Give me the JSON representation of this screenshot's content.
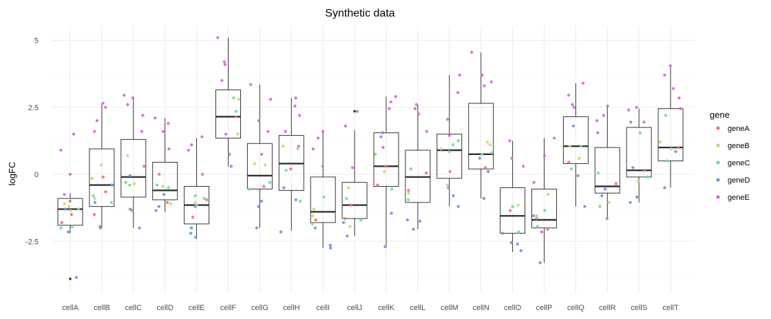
{
  "chart_data": {
    "type": "boxplot",
    "title": "Synthetic data",
    "xlabel": "",
    "ylabel": "logFC",
    "ylim": [
      -4.3,
      5.4
    ],
    "yticks": [
      5,
      2.5,
      0,
      -2.5
    ],
    "ytick_labels": [
      "5",
      "2.5",
      "0",
      "-2.5"
    ],
    "grid": true,
    "legend": {
      "title": "gene",
      "placement": "right",
      "entries": [
        "geneA",
        "geneB",
        "geneC",
        "geneD",
        "geneE"
      ]
    },
    "colors": {
      "geneA": "#f0736a",
      "geneB": "#c8d96b",
      "geneC": "#6edb9a",
      "geneD": "#6b97dd",
      "geneE": "#d569dc",
      "box": "#333333",
      "grid": "#ebebeb"
    },
    "categories": [
      "cellA",
      "cellB",
      "cellC",
      "cellD",
      "cellE",
      "cellF",
      "cellG",
      "cellH",
      "cellI",
      "cellJ",
      "cellK",
      "cellL",
      "cellM",
      "cellN",
      "cellO",
      "cellP",
      "cellQ",
      "cellR",
      "cellS",
      "cellT"
    ],
    "boxes": [
      {
        "whisker_low": -2.2,
        "q1": -1.9,
        "median": -1.3,
        "q3": -0.9,
        "whisker_high": -0.7,
        "outliers": [
          -3.9
        ]
      },
      {
        "whisker_low": -2.0,
        "q1": -1.2,
        "median": -0.4,
        "q3": 0.95,
        "whisker_high": 2.6,
        "outliers": []
      },
      {
        "whisker_low": -2.0,
        "q1": -0.85,
        "median": -0.1,
        "q3": 1.3,
        "whisker_high": 2.9,
        "outliers": []
      },
      {
        "whisker_low": -1.4,
        "q1": -0.95,
        "median": -0.6,
        "q3": 0.45,
        "whisker_high": 2.1,
        "outliers": []
      },
      {
        "whisker_low": -2.4,
        "q1": -1.85,
        "median": -1.15,
        "q3": -0.45,
        "whisker_high": 1.35,
        "outliers": []
      },
      {
        "whisker_low": 0.3,
        "q1": 1.35,
        "median": 2.15,
        "q3": 3.15,
        "whisker_high": 5.1,
        "outliers": []
      },
      {
        "whisker_low": -2.0,
        "q1": -0.55,
        "median": -0.05,
        "q3": 1.15,
        "whisker_high": 3.35,
        "outliers": []
      },
      {
        "whisker_low": -2.1,
        "q1": -0.6,
        "median": 0.4,
        "q3": 1.45,
        "whisker_high": 2.85,
        "outliers": []
      },
      {
        "whisker_low": -2.75,
        "q1": -1.8,
        "median": -1.4,
        "q3": -0.1,
        "whisker_high": 1.6,
        "outliers": []
      },
      {
        "whisker_low": -2.3,
        "q1": -1.65,
        "median": -1.15,
        "q3": -0.3,
        "whisker_high": 1.65,
        "outliers": [
          2.35
        ]
      },
      {
        "whisker_low": -2.7,
        "q1": -0.45,
        "median": 0.3,
        "q3": 1.55,
        "whisker_high": 2.9,
        "outliers": []
      },
      {
        "whisker_low": -2.05,
        "q1": -1.05,
        "median": -0.1,
        "q3": 0.9,
        "whisker_high": 2.6,
        "outliers": []
      },
      {
        "whisker_low": -1.2,
        "q1": -0.15,
        "median": 0.9,
        "q3": 1.5,
        "whisker_high": 3.7,
        "outliers": []
      },
      {
        "whisker_low": -0.9,
        "q1": 0.2,
        "median": 0.75,
        "q3": 2.65,
        "whisker_high": 4.55,
        "outliers": []
      },
      {
        "whisker_low": -2.9,
        "q1": -2.2,
        "median": -1.55,
        "q3": -0.5,
        "whisker_high": 1.25,
        "outliers": []
      },
      {
        "whisker_low": -3.3,
        "q1": -2.0,
        "median": -1.7,
        "q3": -0.55,
        "whisker_high": 1.35,
        "outliers": []
      },
      {
        "whisker_low": -1.2,
        "q1": 0.4,
        "median": 1.05,
        "q3": 2.15,
        "whisker_high": 3.4,
        "outliers": []
      },
      {
        "whisker_low": -1.65,
        "q1": -0.7,
        "median": -0.45,
        "q3": 1.0,
        "whisker_high": 2.55,
        "outliers": []
      },
      {
        "whisker_low": -1.05,
        "q1": -0.1,
        "median": 0.15,
        "q3": 1.75,
        "whisker_high": 2.45,
        "outliers": []
      },
      {
        "whisker_low": -0.5,
        "q1": 0.5,
        "median": 1.0,
        "q3": 2.45,
        "whisker_high": 4.0,
        "outliers": []
      }
    ],
    "points": [
      {
        "cat": 0,
        "gene": "geneA",
        "values": [
          -1.0,
          -1.5,
          -1.8
        ]
      },
      {
        "cat": 0,
        "gene": "geneB",
        "values": [
          -1.1,
          -1.2,
          -1.35
        ]
      },
      {
        "cat": 0,
        "gene": "geneC",
        "values": [
          -2.0,
          -1.3,
          -1.95
        ]
      },
      {
        "cat": 0,
        "gene": "geneD",
        "values": [
          -2.15,
          -1.3,
          -3.85
        ]
      },
      {
        "cat": 0,
        "gene": "geneE",
        "values": [
          1.5,
          0.9,
          0.0,
          -0.75
        ]
      },
      {
        "cat": 1,
        "gene": "geneA",
        "values": [
          -0.65,
          -1.5,
          -0.1
        ]
      },
      {
        "cat": 1,
        "gene": "geneB",
        "values": [
          0.35,
          -0.9,
          -0.15
        ]
      },
      {
        "cat": 1,
        "gene": "geneC",
        "values": [
          -1.05,
          -0.4,
          -0.8
        ]
      },
      {
        "cat": 1,
        "gene": "geneD",
        "values": [
          -2.0,
          -0.4,
          -1.05,
          -1.95
        ]
      },
      {
        "cat": 1,
        "gene": "geneE",
        "values": [
          2.65,
          2.5,
          2.0,
          1.6
        ]
      },
      {
        "cat": 2,
        "gene": "geneA",
        "values": [
          0.3,
          -1.35
        ]
      },
      {
        "cat": 2,
        "gene": "geneB",
        "values": [
          0.7,
          -0.35
        ]
      },
      {
        "cat": 2,
        "gene": "geneC",
        "values": [
          -0.4,
          -0.3
        ]
      },
      {
        "cat": 2,
        "gene": "geneD",
        "values": [
          -2.0,
          -1.3,
          -0.05
        ]
      },
      {
        "cat": 2,
        "gene": "geneE",
        "values": [
          2.95,
          2.2,
          2.6,
          1.6,
          2.85
        ]
      },
      {
        "cat": 3,
        "gene": "geneA",
        "values": [
          0.0,
          -1.05
        ]
      },
      {
        "cat": 3,
        "gene": "geneB",
        "values": [
          -0.45,
          -1.1
        ]
      },
      {
        "cat": 3,
        "gene": "geneC",
        "values": [
          -0.5,
          -0.4
        ]
      },
      {
        "cat": 3,
        "gene": "geneD",
        "values": [
          -1.2,
          -0.75,
          -1.35
        ]
      },
      {
        "cat": 3,
        "gene": "geneE",
        "values": [
          2.1,
          1.6,
          0.95,
          1.9
        ]
      },
      {
        "cat": 4,
        "gene": "geneA",
        "values": [
          -0.95,
          -1.6
        ]
      },
      {
        "cat": 4,
        "gene": "geneB",
        "values": [
          -1.05,
          -1.15
        ]
      },
      {
        "cat": 4,
        "gene": "geneC",
        "values": [
          -0.8,
          -0.9
        ]
      },
      {
        "cat": 4,
        "gene": "geneD",
        "values": [
          -2.35,
          -1.2,
          -2.0,
          -2.2
        ]
      },
      {
        "cat": 4,
        "gene": "geneE",
        "values": [
          1.4,
          0.9,
          1.1,
          0.0
        ]
      },
      {
        "cat": 5,
        "gene": "geneA",
        "values": [
          2.15
        ]
      },
      {
        "cat": 5,
        "gene": "geneB",
        "values": [
          2.8,
          1.5
        ]
      },
      {
        "cat": 5,
        "gene": "geneC",
        "values": [
          2.35,
          2.85
        ]
      },
      {
        "cat": 5,
        "gene": "geneD",
        "values": [
          0.3,
          0.75
        ]
      },
      {
        "cat": 5,
        "gene": "geneE",
        "values": [
          5.1,
          4.2,
          4.1,
          3.5,
          1.5
        ]
      },
      {
        "cat": 6,
        "gene": "geneA",
        "values": [
          -0.45
        ]
      },
      {
        "cat": 6,
        "gene": "geneB",
        "values": [
          0.35,
          0.4
        ]
      },
      {
        "cat": 6,
        "gene": "geneC",
        "values": [
          -0.3,
          -0.55
        ]
      },
      {
        "cat": 6,
        "gene": "geneD",
        "values": [
          -2.0,
          -1.0,
          -1.2
        ]
      },
      {
        "cat": 6,
        "gene": "geneE",
        "values": [
          3.35,
          2.8,
          2.0,
          1.6,
          0.75
        ]
      },
      {
        "cat": 7,
        "gene": "geneA",
        "values": [
          0.2
        ]
      },
      {
        "cat": 7,
        "gene": "geneB",
        "values": [
          1.05,
          0.95
        ]
      },
      {
        "cat": 7,
        "gene": "geneC",
        "values": [
          -1.0,
          0.15
        ]
      },
      {
        "cat": 7,
        "gene": "geneD",
        "values": [
          -2.15,
          -0.5,
          -0.95
        ]
      },
      {
        "cat": 7,
        "gene": "geneE",
        "values": [
          2.85,
          2.55,
          2.2,
          1.6,
          1.05
        ]
      },
      {
        "cat": 8,
        "gene": "geneA",
        "values": [
          -1.7
        ]
      },
      {
        "cat": 8,
        "gene": "geneB",
        "values": [
          -1.55,
          -1.3
        ]
      },
      {
        "cat": 8,
        "gene": "geneC",
        "values": [
          -1.85,
          -0.85
        ]
      },
      {
        "cat": 8,
        "gene": "geneD",
        "values": [
          -2.65,
          -2.75,
          -2.0
        ]
      },
      {
        "cat": 8,
        "gene": "geneE",
        "values": [
          1.6,
          0.95,
          1.35,
          0.3
        ]
      },
      {
        "cat": 9,
        "gene": "geneA",
        "values": [
          -1.65,
          -1.15
        ]
      },
      {
        "cat": 9,
        "gene": "geneB",
        "values": [
          -0.5,
          -1.95
        ]
      },
      {
        "cat": 9,
        "gene": "geneC",
        "values": [
          -1.7,
          -0.9
        ]
      },
      {
        "cat": 9,
        "gene": "geneD",
        "values": [
          -2.3,
          -1.8
        ]
      },
      {
        "cat": 9,
        "gene": "geneE",
        "values": [
          2.35,
          1.8,
          0.25
        ]
      },
      {
        "cat": 10,
        "gene": "geneA",
        "values": [
          -0.4,
          0.3
        ]
      },
      {
        "cat": 10,
        "gene": "geneB",
        "values": [
          0.1
        ]
      },
      {
        "cat": 10,
        "gene": "geneC",
        "values": [
          0.75,
          -0.55
        ]
      },
      {
        "cat": 10,
        "gene": "geneD",
        "values": [
          -2.7,
          -1.45,
          1.55
        ]
      },
      {
        "cat": 10,
        "gene": "geneE",
        "values": [
          2.9,
          2.7,
          2.45,
          1.4,
          1.0
        ]
      },
      {
        "cat": 11,
        "gene": "geneA",
        "values": [
          -0.6,
          0.05
        ]
      },
      {
        "cat": 11,
        "gene": "geneB",
        "values": [
          -0.7
        ]
      },
      {
        "cat": 11,
        "gene": "geneC",
        "values": [
          -0.95,
          0.2
        ]
      },
      {
        "cat": 11,
        "gene": "geneD",
        "values": [
          -2.05,
          -1.7,
          -1.75
        ]
      },
      {
        "cat": 11,
        "gene": "geneE",
        "values": [
          2.6,
          2.45,
          2.25,
          1.6
        ]
      },
      {
        "cat": 12,
        "gene": "geneA",
        "values": [
          0.1
        ]
      },
      {
        "cat": 12,
        "gene": "geneB",
        "values": [
          -0.4,
          0.95
        ]
      },
      {
        "cat": 12,
        "gene": "geneC",
        "values": [
          1.25,
          1.1,
          0.85
        ]
      },
      {
        "cat": 12,
        "gene": "geneD",
        "values": [
          -1.2,
          -0.8,
          -0.5
        ]
      },
      {
        "cat": 12,
        "gene": "geneE",
        "values": [
          3.7,
          3.05,
          2.05,
          1.45
        ]
      },
      {
        "cat": 13,
        "gene": "geneA",
        "values": [
          0.25
        ]
      },
      {
        "cat": 13,
        "gene": "geneB",
        "values": [
          1.2,
          1.1
        ]
      },
      {
        "cat": 13,
        "gene": "geneC",
        "values": [
          0.75,
          0.8
        ]
      },
      {
        "cat": 13,
        "gene": "geneD",
        "values": [
          -0.9,
          0.1,
          0.6
        ]
      },
      {
        "cat": 13,
        "gene": "geneE",
        "values": [
          4.55,
          3.45,
          3.7,
          3.3
        ]
      },
      {
        "cat": 14,
        "gene": "geneA",
        "values": [
          -1.35
        ]
      },
      {
        "cat": 14,
        "gene": "geneB",
        "values": [
          -1.15
        ]
      },
      {
        "cat": 14,
        "gene": "geneC",
        "values": [
          -2.15,
          -1.2
        ]
      },
      {
        "cat": 14,
        "gene": "geneD",
        "values": [
          -2.55,
          -2.85,
          -2.6,
          -2.2
        ]
      },
      {
        "cat": 14,
        "gene": "geneE",
        "values": [
          1.25,
          0.6,
          0.3
        ]
      },
      {
        "cat": 15,
        "gene": "geneA",
        "values": [
          -2.05,
          -1.65
        ]
      },
      {
        "cat": 15,
        "gene": "geneB",
        "values": [
          -0.75,
          -1.55
        ]
      },
      {
        "cat": 15,
        "gene": "geneC",
        "values": [
          -1.95,
          -1.35
        ]
      },
      {
        "cat": 15,
        "gene": "geneD",
        "values": [
          -3.3,
          -1.55
        ]
      },
      {
        "cat": 15,
        "gene": "geneE",
        "values": [
          1.35,
          0.7,
          -0.3,
          -2.15
        ]
      },
      {
        "cat": 16,
        "gene": "geneA",
        "values": [
          0.45
        ]
      },
      {
        "cat": 16,
        "gene": "geneB",
        "values": [
          0.6,
          1.05
        ]
      },
      {
        "cat": 16,
        "gene": "geneC",
        "values": [
          1.05,
          0.2
        ]
      },
      {
        "cat": 16,
        "gene": "geneD",
        "values": [
          -1.2,
          -0.05,
          1.8
        ]
      },
      {
        "cat": 16,
        "gene": "geneE",
        "values": [
          3.4,
          2.95,
          2.6,
          2.5
        ]
      },
      {
        "cat": 17,
        "gene": "geneA",
        "values": [
          -0.35
        ]
      },
      {
        "cat": 17,
        "gene": "geneB",
        "values": [
          -1.05
        ]
      },
      {
        "cat": 17,
        "gene": "geneC",
        "values": [
          0.05,
          -1.2
        ]
      },
      {
        "cat": 17,
        "gene": "geneD",
        "values": [
          -1.65,
          -0.8,
          -0.55
        ]
      },
      {
        "cat": 17,
        "gene": "geneE",
        "values": [
          2.55,
          2.2,
          2.0,
          1.55
        ]
      },
      {
        "cat": 18,
        "gene": "geneA",
        "values": [
          0.15
        ]
      },
      {
        "cat": 18,
        "gene": "geneB",
        "values": [
          -0.25
        ]
      },
      {
        "cat": 18,
        "gene": "geneC",
        "values": [
          1.55,
          -0.1
        ]
      },
      {
        "cat": 18,
        "gene": "geneD",
        "values": [
          -1.05,
          -0.85,
          0.25
        ]
      },
      {
        "cat": 18,
        "gene": "geneE",
        "values": [
          2.5,
          2.4,
          1.95,
          1.95
        ]
      },
      {
        "cat": 19,
        "gene": "geneA",
        "values": [
          1.0
        ]
      },
      {
        "cat": 19,
        "gene": "geneB",
        "values": [
          1.2,
          0.95
        ]
      },
      {
        "cat": 19,
        "gene": "geneC",
        "values": [
          2.2,
          0.5
        ]
      },
      {
        "cat": 19,
        "gene": "geneD",
        "values": [
          -0.5,
          0.85
        ]
      },
      {
        "cat": 19,
        "gene": "geneE",
        "values": [
          4.05,
          3.7,
          3.2,
          2.85,
          2.45
        ]
      }
    ]
  }
}
